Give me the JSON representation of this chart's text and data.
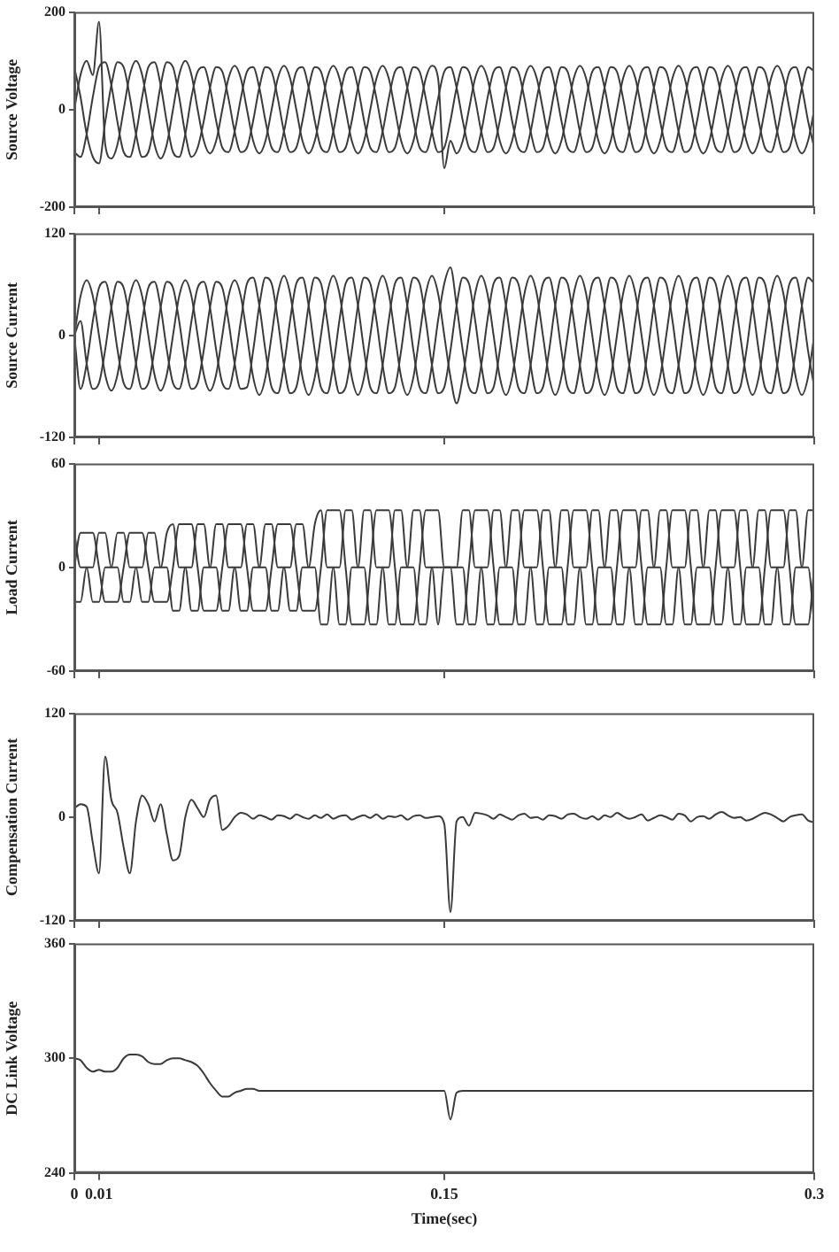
{
  "chart_data": [
    {
      "type": "line",
      "ylabel": "Source Voltage",
      "marker": "none",
      "tick_labels": "y",
      "xlim": [
        0,
        0.3
      ],
      "xticks": [
        0,
        0.01,
        0.15,
        0.3
      ],
      "ylim": [
        -200,
        200
      ],
      "yticks": [
        -200,
        0,
        200
      ],
      "x": [
        0,
        0.0025,
        0.005,
        0.0075,
        0.01,
        0.0125,
        0.015,
        0.0175,
        0.02,
        0.0225,
        0.025,
        0.0275,
        0.03,
        0.0325,
        0.035,
        0.0375,
        0.04,
        0.0425,
        0.045,
        0.0475,
        0.05,
        0.0525,
        0.055,
        0.0575,
        0.06,
        0.0625,
        0.065,
        0.0675,
        0.07,
        0.0725,
        0.075,
        0.0775,
        0.08,
        0.0825,
        0.085,
        0.0875,
        0.09,
        0.0925,
        0.095,
        0.0975,
        0.1,
        0.1025,
        0.105,
        0.1075,
        0.11,
        0.1125,
        0.115,
        0.1175,
        0.12,
        0.1225,
        0.125,
        0.1275,
        0.13,
        0.1325,
        0.135,
        0.1375,
        0.14,
        0.1425,
        0.145,
        0.1475,
        0.15,
        0.1525,
        0.155,
        0.1575,
        0.16,
        0.1625,
        0.165,
        0.1675,
        0.17,
        0.1725,
        0.175,
        0.1775,
        0.18,
        0.1825,
        0.185,
        0.1875,
        0.19,
        0.1925,
        0.195,
        0.1975,
        0.2,
        0.2025,
        0.205,
        0.2075,
        0.21,
        0.2125,
        0.215,
        0.2175,
        0.22,
        0.2225,
        0.225,
        0.2275,
        0.23,
        0.2325,
        0.235,
        0.2375,
        0.24,
        0.2425,
        0.245,
        0.2475,
        0.25,
        0.2525,
        0.255,
        0.2575,
        0.26,
        0.2625,
        0.265,
        0.2675,
        0.27,
        0.2725,
        0.275,
        0.2775,
        0.28,
        0.2825,
        0.285,
        0.2875,
        0.29,
        0.2925,
        0.295,
        0.2975,
        0.3
      ],
      "series": [
        {
          "color": "#3a3a3a",
          "values": [
            0,
            71,
            100,
            71,
            180,
            -71,
            -100,
            -71,
            0,
            71,
            100,
            71,
            0,
            -71,
            -100,
            -71,
            0,
            71,
            100,
            71,
            0,
            -64,
            -90,
            -64,
            0,
            64,
            90,
            64,
            0,
            -64,
            -90,
            -64,
            0,
            64,
            90,
            64,
            0,
            -64,
            -90,
            -64,
            0,
            64,
            90,
            64,
            0,
            -64,
            -90,
            -64,
            0,
            64,
            90,
            64,
            0,
            -64,
            -90,
            -64,
            0,
            64,
            90,
            64,
            -120,
            -64,
            -90,
            -64,
            0,
            64,
            90,
            64,
            0,
            -64,
            -90,
            -64,
            0,
            64,
            90,
            64,
            0,
            -64,
            -90,
            -64,
            0,
            64,
            90,
            64,
            0,
            -64,
            -90,
            -64,
            0,
            64,
            90,
            64,
            0,
            -64,
            -90,
            -64,
            0,
            64,
            90,
            64,
            0,
            -64,
            -90,
            -64,
            0,
            64,
            90,
            64,
            0,
            -64,
            -90,
            -64,
            0,
            64,
            90,
            64,
            0,
            -64,
            -90,
            -64,
            0
          ]
        },
        {
          "color": "#3a3a3a",
          "values": [
            -87,
            -97,
            -50,
            26,
            87,
            97,
            50,
            -26,
            -87,
            -97,
            -50,
            26,
            87,
            97,
            50,
            -26,
            -87,
            -97,
            -50,
            26,
            78,
            87,
            45,
            -23,
            -78,
            -87,
            -45,
            23,
            78,
            87,
            45,
            -23,
            -78,
            -87,
            -45,
            23,
            78,
            87,
            45,
            -23,
            -78,
            -87,
            -45,
            23,
            78,
            87,
            45,
            -23,
            -78,
            -87,
            -45,
            23,
            78,
            87,
            45,
            -23,
            -78,
            -87,
            -45,
            23,
            78,
            87,
            45,
            -23,
            -78,
            -87,
            -45,
            23,
            78,
            87,
            45,
            -23,
            -78,
            -87,
            -45,
            23,
            78,
            87,
            45,
            -23,
            -78,
            -87,
            -45,
            23,
            78,
            87,
            45,
            -23,
            -78,
            -87,
            -45,
            23,
            78,
            87,
            45,
            -23,
            -78,
            -87,
            -45,
            23,
            78,
            87,
            45,
            -23,
            -78,
            -87,
            -45,
            23,
            78,
            87,
            45,
            -23,
            -78,
            -87,
            -45,
            23,
            78,
            87,
            45,
            -23,
            -78
          ]
        },
        {
          "color": "#3a3a3a",
          "values": [
            87,
            26,
            -50,
            -97,
            -110,
            -26,
            50,
            97,
            87,
            26,
            -50,
            -97,
            -87,
            -26,
            50,
            97,
            87,
            26,
            -50,
            -97,
            -78,
            -23,
            45,
            87,
            78,
            23,
            -45,
            -87,
            -78,
            -23,
            45,
            87,
            78,
            23,
            -45,
            -87,
            -78,
            -23,
            45,
            87,
            78,
            23,
            -45,
            -87,
            -78,
            -23,
            45,
            87,
            78,
            23,
            -45,
            -87,
            -78,
            -23,
            45,
            87,
            78,
            23,
            -45,
            -87,
            -78,
            -23,
            45,
            87,
            78,
            23,
            -45,
            -87,
            -78,
            -23,
            45,
            87,
            78,
            23,
            -45,
            -87,
            -78,
            -23,
            45,
            87,
            78,
            23,
            -45,
            -87,
            -78,
            -23,
            45,
            87,
            78,
            23,
            -45,
            -87,
            -78,
            -23,
            45,
            87,
            78,
            23,
            -45,
            -87,
            -78,
            -23,
            45,
            87,
            78,
            23,
            -45,
            -87,
            -78,
            -23,
            45,
            87,
            78,
            23,
            -45,
            -87,
            -78,
            -23,
            45,
            87,
            78
          ]
        }
      ]
    },
    {
      "type": "line",
      "ylabel": "Source Current",
      "marker": "none",
      "tick_labels": "y",
      "xlim": [
        0,
        0.3
      ],
      "xticks": [
        0,
        0.01,
        0.15,
        0.3
      ],
      "ylim": [
        -120,
        120
      ],
      "yticks": [
        -120,
        0,
        120
      ],
      "x": [
        0,
        0.0025,
        0.005,
        0.0075,
        0.01,
        0.0125,
        0.015,
        0.0175,
        0.02,
        0.0225,
        0.025,
        0.0275,
        0.03,
        0.0325,
        0.035,
        0.0375,
        0.04,
        0.0425,
        0.045,
        0.0475,
        0.05,
        0.0525,
        0.055,
        0.0575,
        0.06,
        0.0625,
        0.065,
        0.0675,
        0.07,
        0.0725,
        0.075,
        0.0775,
        0.08,
        0.0825,
        0.085,
        0.0875,
        0.09,
        0.0925,
        0.095,
        0.0975,
        0.1,
        0.1025,
        0.105,
        0.1075,
        0.11,
        0.1125,
        0.115,
        0.1175,
        0.12,
        0.1225,
        0.125,
        0.1275,
        0.13,
        0.1325,
        0.135,
        0.1375,
        0.14,
        0.1425,
        0.145,
        0.1475,
        0.15,
        0.1525,
        0.155,
        0.1575,
        0.16,
        0.1625,
        0.165,
        0.1675,
        0.17,
        0.1725,
        0.175,
        0.1775,
        0.18,
        0.1825,
        0.185,
        0.1875,
        0.19,
        0.1925,
        0.195,
        0.1975,
        0.2,
        0.2025,
        0.205,
        0.2075,
        0.21,
        0.2125,
        0.215,
        0.2175,
        0.22,
        0.2225,
        0.225,
        0.2275,
        0.23,
        0.2325,
        0.235,
        0.2375,
        0.24,
        0.2425,
        0.245,
        0.2475,
        0.25,
        0.2525,
        0.255,
        0.2575,
        0.26,
        0.2625,
        0.265,
        0.2675,
        0.27,
        0.2725,
        0.275,
        0.2775,
        0.28,
        0.2825,
        0.285,
        0.2875,
        0.29,
        0.2925,
        0.295,
        0.2975,
        0.3
      ],
      "series": [
        {
          "color": "#3a3a3a",
          "values": [
            0,
            46,
            65,
            46,
            0,
            -46,
            -65,
            -46,
            0,
            46,
            65,
            46,
            0,
            -46,
            -65,
            -46,
            0,
            46,
            65,
            46,
            0,
            -46,
            -65,
            -46,
            0,
            46,
            65,
            46,
            0,
            -49,
            -70,
            -49,
            0,
            49,
            70,
            49,
            0,
            -49,
            -70,
            -49,
            0,
            49,
            70,
            49,
            0,
            -49,
            -70,
            -49,
            0,
            49,
            70,
            49,
            0,
            -49,
            -70,
            -49,
            0,
            49,
            70,
            49,
            0,
            -49,
            -80,
            -49,
            0,
            49,
            70,
            49,
            0,
            -49,
            -70,
            -49,
            0,
            49,
            70,
            49,
            0,
            -49,
            -70,
            -49,
            0,
            49,
            70,
            49,
            0,
            -49,
            -70,
            -49,
            0,
            49,
            70,
            49,
            0,
            -49,
            -70,
            -49,
            0,
            49,
            70,
            49,
            0,
            -49,
            -70,
            -49,
            0,
            49,
            70,
            49,
            0,
            -49,
            -70,
            -49,
            0,
            49,
            70,
            49,
            0,
            -49,
            -70,
            -49,
            0
          ]
        },
        {
          "color": "#3a3a3a",
          "values": [
            0,
            -63,
            -33,
            17,
            56,
            63,
            33,
            -17,
            -56,
            -63,
            -33,
            17,
            56,
            63,
            33,
            -17,
            -56,
            -63,
            -33,
            17,
            56,
            63,
            33,
            -17,
            -56,
            -63,
            -33,
            17,
            61,
            68,
            35,
            -18,
            -61,
            -68,
            -35,
            18,
            61,
            68,
            35,
            -18,
            -61,
            -68,
            -35,
            18,
            61,
            68,
            35,
            -18,
            -61,
            -68,
            -35,
            18,
            61,
            68,
            35,
            -18,
            -61,
            -68,
            -35,
            18,
            61,
            80,
            35,
            -18,
            -61,
            -68,
            -35,
            18,
            61,
            68,
            35,
            -18,
            -61,
            -68,
            -35,
            18,
            61,
            68,
            35,
            -18,
            -61,
            -68,
            -35,
            18,
            61,
            68,
            35,
            -18,
            -61,
            -68,
            -35,
            18,
            61,
            68,
            35,
            -18,
            -61,
            -68,
            -35,
            18,
            61,
            68,
            35,
            -18,
            -61,
            -68,
            -35,
            18,
            61,
            68,
            35,
            -18,
            -61,
            -68,
            -35,
            18,
            61,
            68,
            35,
            -18,
            -61
          ]
        },
        {
          "color": "#3a3a3a",
          "values": [
            0,
            17,
            -33,
            -63,
            -56,
            -17,
            33,
            63,
            56,
            17,
            -33,
            -63,
            -56,
            -17,
            33,
            63,
            56,
            17,
            -33,
            -63,
            -56,
            -17,
            33,
            63,
            56,
            17,
            -33,
            -63,
            -61,
            -18,
            35,
            68,
            61,
            18,
            -35,
            -68,
            -61,
            -18,
            35,
            68,
            61,
            18,
            -35,
            -68,
            -61,
            -18,
            35,
            68,
            61,
            18,
            -35,
            -68,
            -61,
            -18,
            35,
            68,
            61,
            18,
            -35,
            -68,
            -61,
            -18,
            35,
            68,
            61,
            18,
            -35,
            -68,
            -61,
            -18,
            35,
            68,
            61,
            18,
            -35,
            -68,
            -61,
            -18,
            35,
            68,
            61,
            18,
            -35,
            -68,
            -61,
            -18,
            35,
            68,
            61,
            18,
            -35,
            -68,
            -61,
            -18,
            35,
            68,
            61,
            18,
            -35,
            -68,
            -61,
            -18,
            35,
            68,
            61,
            18,
            -35,
            -68,
            -61,
            -18,
            35,
            68,
            61,
            18,
            -35,
            -68,
            -61,
            -18,
            35,
            68,
            61
          ]
        }
      ]
    },
    {
      "type": "line",
      "ylabel": "Load Current",
      "marker": "none",
      "tick_labels": "y",
      "xlim": [
        0,
        0.3
      ],
      "xticks": [
        0,
        0.01,
        0.15,
        0.3
      ],
      "ylim": [
        -60,
        60
      ],
      "yticks": [
        -60,
        0,
        60
      ],
      "x": [
        0,
        0.0025,
        0.005,
        0.0075,
        0.01,
        0.0125,
        0.015,
        0.0175,
        0.02,
        0.0225,
        0.025,
        0.0275,
        0.03,
        0.0325,
        0.035,
        0.0375,
        0.04,
        0.0425,
        0.045,
        0.0475,
        0.05,
        0.0525,
        0.055,
        0.0575,
        0.06,
        0.0625,
        0.065,
        0.0675,
        0.07,
        0.0725,
        0.075,
        0.0775,
        0.08,
        0.0825,
        0.085,
        0.0875,
        0.09,
        0.0925,
        0.095,
        0.0975,
        0.1,
        0.1025,
        0.105,
        0.1075,
        0.11,
        0.1125,
        0.115,
        0.1175,
        0.12,
        0.1225,
        0.125,
        0.1275,
        0.13,
        0.1325,
        0.135,
        0.1375,
        0.14,
        0.1425,
        0.145,
        0.1475,
        0.15,
        0.1525,
        0.155,
        0.1575,
        0.16,
        0.1625,
        0.165,
        0.1675,
        0.17,
        0.1725,
        0.175,
        0.1775,
        0.18,
        0.1825,
        0.185,
        0.1875,
        0.19,
        0.1925,
        0.195,
        0.1975,
        0.2,
        0.2025,
        0.205,
        0.2075,
        0.21,
        0.2125,
        0.215,
        0.2175,
        0.22,
        0.2225,
        0.225,
        0.2275,
        0.23,
        0.2325,
        0.235,
        0.2375,
        0.24,
        0.2425,
        0.245,
        0.2475,
        0.25,
        0.2525,
        0.255,
        0.2575,
        0.26,
        0.2625,
        0.265,
        0.2675,
        0.27,
        0.2725,
        0.275,
        0.2775,
        0.28,
        0.2825,
        0.285,
        0.2875,
        0.29,
        0.2925,
        0.295,
        0.2975,
        0.3
      ],
      "series": [
        {
          "color": "#3a3a3a",
          "values": [
            0,
            20,
            20,
            20,
            0,
            -20,
            -20,
            -20,
            0,
            20,
            20,
            20,
            0,
            -20,
            -20,
            -20,
            0,
            25,
            25,
            25,
            0,
            -25,
            -25,
            -25,
            0,
            25,
            25,
            25,
            0,
            -25,
            -25,
            -25,
            0,
            25,
            25,
            25,
            0,
            -25,
            -25,
            -25,
            0,
            33,
            33,
            33,
            0,
            -33,
            -33,
            -33,
            0,
            33,
            33,
            33,
            0,
            -33,
            -33,
            -33,
            0,
            33,
            33,
            33,
            0,
            0,
            -33,
            -33,
            0,
            33,
            33,
            33,
            0,
            -33,
            -33,
            -33,
            0,
            33,
            33,
            33,
            0,
            -33,
            -33,
            -33,
            0,
            33,
            33,
            33,
            0,
            -33,
            -33,
            -33,
            0,
            33,
            33,
            33,
            0,
            -33,
            -33,
            -33,
            0,
            33,
            33,
            33,
            0,
            -33,
            -33,
            -33,
            0,
            33,
            33,
            33,
            0,
            -33,
            -33,
            -33,
            0,
            33,
            33,
            33,
            0,
            -33,
            -33,
            -33,
            0
          ]
        },
        {
          "color": "#3a3a3a",
          "values": [
            -20,
            -20,
            0,
            0,
            20,
            20,
            0,
            0,
            -20,
            -20,
            0,
            0,
            20,
            20,
            0,
            0,
            -25,
            -25,
            0,
            0,
            25,
            25,
            0,
            0,
            -25,
            -25,
            0,
            0,
            25,
            25,
            0,
            0,
            -25,
            -25,
            0,
            0,
            25,
            25,
            0,
            0,
            -33,
            -33,
            0,
            0,
            33,
            33,
            0,
            0,
            -33,
            -33,
            0,
            0,
            33,
            33,
            0,
            0,
            -33,
            -33,
            0,
            0,
            0,
            0,
            0,
            0,
            -33,
            -33,
            0,
            0,
            33,
            33,
            0,
            0,
            -33,
            -33,
            0,
            0,
            33,
            33,
            0,
            0,
            -33,
            -33,
            0,
            0,
            33,
            33,
            0,
            0,
            -33,
            -33,
            0,
            0,
            33,
            33,
            0,
            0,
            -33,
            -33,
            0,
            0,
            33,
            33,
            0,
            0,
            -33,
            -33,
            0,
            0,
            33,
            33,
            0,
            0,
            -33,
            -33,
            0,
            0,
            33,
            33,
            0,
            0,
            -33
          ]
        },
        {
          "color": "#3a3a3a",
          "values": [
            20,
            0,
            0,
            -20,
            -20,
            0,
            0,
            20,
            20,
            0,
            0,
            -20,
            -20,
            0,
            0,
            20,
            25,
            0,
            0,
            -25,
            -25,
            0,
            0,
            25,
            25,
            0,
            0,
            -25,
            -25,
            0,
            0,
            25,
            25,
            0,
            0,
            -25,
            -25,
            0,
            0,
            25,
            33,
            0,
            0,
            -33,
            -33,
            0,
            0,
            33,
            33,
            0,
            0,
            -33,
            -33,
            0,
            0,
            33,
            33,
            0,
            0,
            -33,
            0,
            0,
            0,
            33,
            33,
            0,
            0,
            -33,
            -33,
            0,
            0,
            33,
            33,
            0,
            0,
            -33,
            -33,
            0,
            0,
            33,
            33,
            0,
            0,
            -33,
            -33,
            0,
            0,
            33,
            33,
            0,
            0,
            -33,
            -33,
            0,
            0,
            33,
            33,
            0,
            0,
            -33,
            -33,
            0,
            0,
            33,
            33,
            0,
            0,
            -33,
            -33,
            0,
            0,
            33,
            33,
            0,
            0,
            -33,
            -33,
            0,
            0,
            33,
            33
          ]
        }
      ]
    },
    {
      "type": "line",
      "ylabel": "Compensation Current",
      "marker": "none",
      "tick_labels": "y",
      "xlim": [
        0,
        0.3
      ],
      "xticks": [
        0,
        0.01,
        0.15,
        0.3
      ],
      "ylim": [
        -120,
        120
      ],
      "yticks": [
        -120,
        0,
        120
      ],
      "x": [
        0,
        0.0025,
        0.005,
        0.0075,
        0.01,
        0.0125,
        0.015,
        0.0175,
        0.02,
        0.0225,
        0.025,
        0.0275,
        0.03,
        0.0325,
        0.035,
        0.0375,
        0.04,
        0.0425,
        0.045,
        0.0475,
        0.05,
        0.0525,
        0.055,
        0.0575,
        0.06,
        0.0625,
        0.065,
        0.0675,
        0.07,
        0.0725,
        0.075,
        0.0775,
        0.08,
        0.0825,
        0.085,
        0.0875,
        0.09,
        0.0925,
        0.095,
        0.0975,
        0.1,
        0.1025,
        0.105,
        0.1075,
        0.11,
        0.1125,
        0.115,
        0.1175,
        0.12,
        0.1225,
        0.125,
        0.1275,
        0.13,
        0.1325,
        0.135,
        0.1375,
        0.14,
        0.1425,
        0.145,
        0.1475,
        0.15,
        0.1525,
        0.155,
        0.1575,
        0.16,
        0.1625,
        0.165,
        0.1675,
        0.17,
        0.1725,
        0.175,
        0.1775,
        0.18,
        0.1825,
        0.185,
        0.1875,
        0.19,
        0.1925,
        0.195,
        0.1975,
        0.2,
        0.2025,
        0.205,
        0.2075,
        0.21,
        0.2125,
        0.215,
        0.2175,
        0.22,
        0.2225,
        0.225,
        0.2275,
        0.23,
        0.2325,
        0.235,
        0.2375,
        0.24,
        0.2425,
        0.245,
        0.2475,
        0.25,
        0.2525,
        0.255,
        0.2575,
        0.26,
        0.2625,
        0.265,
        0.2675,
        0.27,
        0.2725,
        0.275,
        0.2775,
        0.28,
        0.2825,
        0.285,
        0.2875,
        0.29,
        0.2925,
        0.295,
        0.2975,
        0.3
      ],
      "series": [
        {
          "color": "#3a3a3a",
          "values": [
            10,
            15,
            12,
            -30,
            -65,
            70,
            20,
            5,
            -35,
            -65,
            -5,
            25,
            15,
            -5,
            15,
            -20,
            -50,
            -45,
            0,
            20,
            10,
            0,
            20,
            25,
            -15,
            -10,
            0,
            5,
            3,
            -2,
            2,
            0,
            -3,
            2,
            1,
            -2,
            3,
            0,
            -2,
            2,
            -1,
            3,
            -2,
            1,
            2,
            -3,
            0,
            2,
            -1,
            3,
            -2,
            1,
            0,
            2,
            -3,
            1,
            2,
            -1,
            0,
            1,
            -8,
            -110,
            -5,
            0,
            -10,
            5,
            4,
            2,
            -2,
            3,
            0,
            -3,
            2,
            4,
            -1,
            0,
            -3,
            2,
            1,
            -2,
            3,
            4,
            0,
            -2,
            1,
            -3,
            2,
            0,
            5,
            1,
            -2,
            0,
            3,
            -4,
            -1,
            2,
            0,
            -3,
            4,
            2,
            -5,
            0,
            1,
            -2,
            3,
            6,
            2,
            -1,
            0,
            -4,
            -2,
            2,
            5,
            3,
            -1,
            -5,
            0,
            2,
            3,
            -4,
            -6
          ]
        }
      ]
    },
    {
      "type": "line",
      "ylabel": "DC Link Voltage",
      "xlabel": "Time(sec)",
      "marker": "none",
      "xlim": [
        0,
        0.3
      ],
      "xticks": [
        0,
        0.01,
        0.15,
        0.3
      ],
      "ylim": [
        240,
        360
      ],
      "yticks": [
        240,
        300,
        360
      ],
      "x": [
        0,
        0.0025,
        0.005,
        0.0075,
        0.01,
        0.0125,
        0.015,
        0.0175,
        0.02,
        0.0225,
        0.025,
        0.0275,
        0.03,
        0.0325,
        0.035,
        0.0375,
        0.04,
        0.0425,
        0.045,
        0.0475,
        0.05,
        0.0525,
        0.055,
        0.0575,
        0.06,
        0.0625,
        0.065,
        0.0675,
        0.07,
        0.0725,
        0.075,
        0.0775,
        0.08,
        0.0825,
        0.085,
        0.0875,
        0.09,
        0.0925,
        0.095,
        0.0975,
        0.1,
        0.1025,
        0.105,
        0.1075,
        0.11,
        0.1125,
        0.115,
        0.1175,
        0.12,
        0.1225,
        0.125,
        0.1275,
        0.13,
        0.1325,
        0.135,
        0.1375,
        0.14,
        0.1425,
        0.145,
        0.1475,
        0.15,
        0.1525,
        0.155,
        0.1575,
        0.16,
        0.1625,
        0.165,
        0.1675,
        0.17,
        0.1725,
        0.175,
        0.1775,
        0.18,
        0.1825,
        0.185,
        0.1875,
        0.19,
        0.1925,
        0.195,
        0.1975,
        0.2,
        0.2025,
        0.205,
        0.2075,
        0.21,
        0.2125,
        0.215,
        0.2175,
        0.22,
        0.2225,
        0.225,
        0.2275,
        0.23,
        0.2325,
        0.235,
        0.2375,
        0.24,
        0.2425,
        0.245,
        0.2475,
        0.25,
        0.2525,
        0.255,
        0.2575,
        0.26,
        0.2625,
        0.265,
        0.2675,
        0.27,
        0.2725,
        0.275,
        0.2775,
        0.28,
        0.2825,
        0.285,
        0.2875,
        0.29,
        0.2925,
        0.295,
        0.2975,
        0.3
      ],
      "series": [
        {
          "color": "#3a3a3a",
          "values": [
            300,
            299,
            295,
            293,
            294,
            293,
            293,
            295,
            300,
            302,
            302,
            301,
            298,
            297,
            297,
            299,
            300,
            300,
            299,
            298,
            296,
            292,
            287,
            283,
            280,
            280,
            282,
            283,
            284,
            284,
            283,
            283,
            283,
            283,
            283,
            283,
            283,
            283,
            283,
            283,
            283,
            283,
            283,
            283,
            283,
            283,
            283,
            283,
            283,
            283,
            283,
            283,
            283,
            283,
            283,
            283,
            283,
            283,
            283,
            283,
            283,
            268,
            282,
            283,
            283,
            283,
            283,
            283,
            283,
            283,
            283,
            283,
            283,
            283,
            283,
            283,
            283,
            283,
            283,
            283,
            283,
            283,
            283,
            283,
            283,
            283,
            283,
            283,
            283,
            283,
            283,
            283,
            283,
            283,
            283,
            283,
            283,
            283,
            283,
            283,
            283,
            283,
            283,
            283,
            283,
            283,
            283,
            283,
            283,
            283,
            283,
            283,
            283,
            283,
            283,
            283,
            283,
            283,
            283,
            283,
            283
          ]
        }
      ]
    }
  ]
}
